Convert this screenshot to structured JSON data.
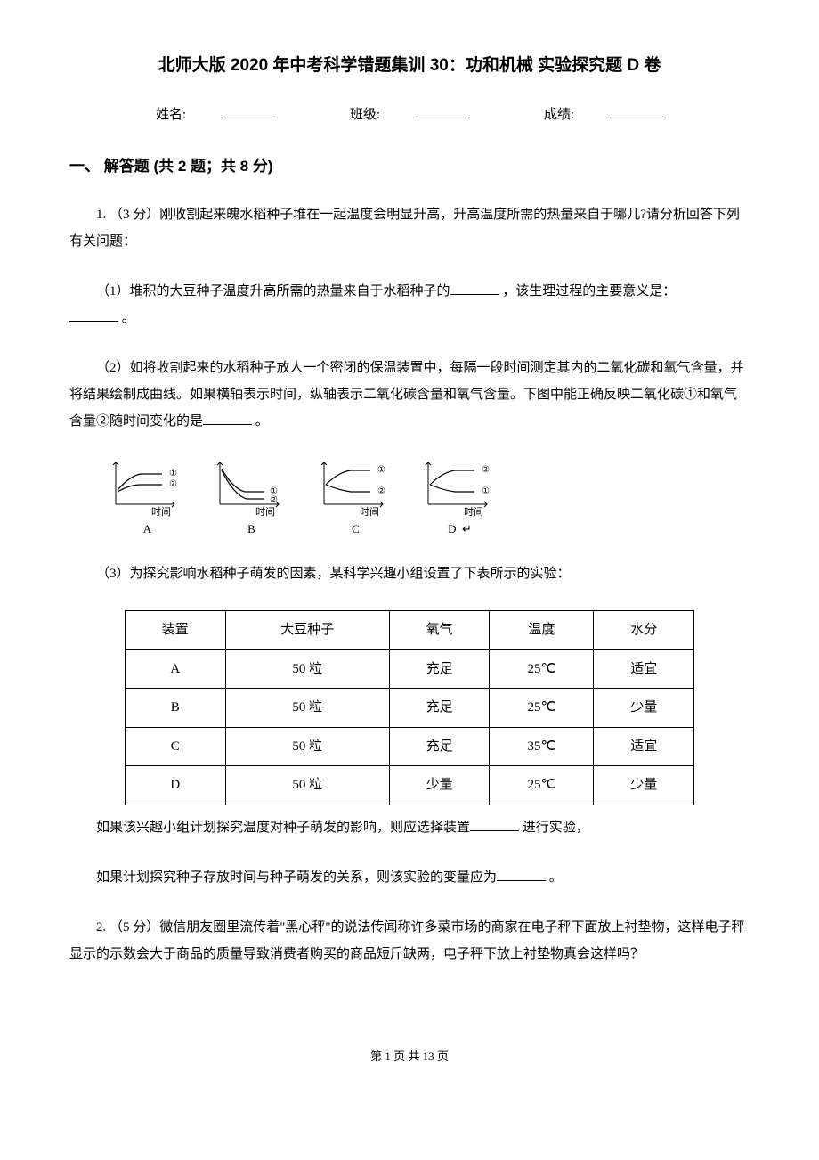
{
  "title": "北师大版 2020 年中考科学错题集训 30：功和机械 实验探究题 D 卷",
  "header": {
    "name_label": "姓名:",
    "class_label": "班级:",
    "score_label": "成绩:"
  },
  "section1": {
    "heading": "一、 解答题 (共 2 题；共 8 分)",
    "q1": {
      "intro": "1. （3 分）刚收割起来魄水稻种子堆在一起温度会明显升高，升高温度所需的热量来自于哪儿?请分析回答下列有关问题：",
      "part1_pre": "（1）堆积的大豆种子温度升高所需的热量来自于水稻种子的",
      "part1_mid": " ，该生理过程的主要意义是：",
      "part1_end": " 。",
      "part2_pre": "（2）如将收割起来的水稻种子放人一个密闭的保温装置中，每隔一段时间测定其内的二氧化碳和氧气含量，并将结果绘制成曲线。如果横轴表示时间，纵轴表示二氧化碳含量和氧气含量。下图中能正确反映二氧化碳①和氧气含量②随时间变化的是",
      "part2_end": " 。",
      "charts": {
        "axis_label": "时间",
        "circled1": "①",
        "circled2": "②",
        "labels": [
          "A",
          "B",
          "C",
          "D"
        ],
        "end_marker": "↵",
        "axis_color": "#000000",
        "curve_color": "#000000",
        "bg": "#ffffff"
      },
      "part3_intro": "（3）为探究影响水稻种子萌发的因素，某科学兴趣小组设置了下表所示的实验：",
      "table": {
        "columns": [
          "装置",
          "大豆种子",
          "氧气",
          "温度",
          "水分"
        ],
        "rows": [
          [
            "A",
            "50 粒",
            "充足",
            "25℃",
            "适宜"
          ],
          [
            "B",
            "50 粒",
            "充足",
            "25℃",
            "少量"
          ],
          [
            "C",
            "50 粒",
            "充足",
            "35℃",
            "适宜"
          ],
          [
            "D",
            "50 粒",
            "少量",
            "25℃",
            "少量"
          ]
        ]
      },
      "part3_line1_pre": "如果该兴趣小组计划探究温度对种子萌发的影响，则应选择装置",
      "part3_line1_post": " 进行实验，",
      "part3_line2_pre": "如果计划探究种子存放时间与种子萌发的关系，则该实验的变量应为",
      "part3_line2_post": " 。"
    },
    "q2": {
      "text": "2. （5 分）微信朋友圈里流传着\"黑心秤\"的说法传闻称许多菜市场的商家在电子秤下面放上衬垫物，这样电子秤显示的示数会大于商品的质量导致消费者购买的商品短斤缺两，电子秤下放上衬垫物真会这样吗？"
    }
  },
  "footer": "第 1 页 共 13 页"
}
